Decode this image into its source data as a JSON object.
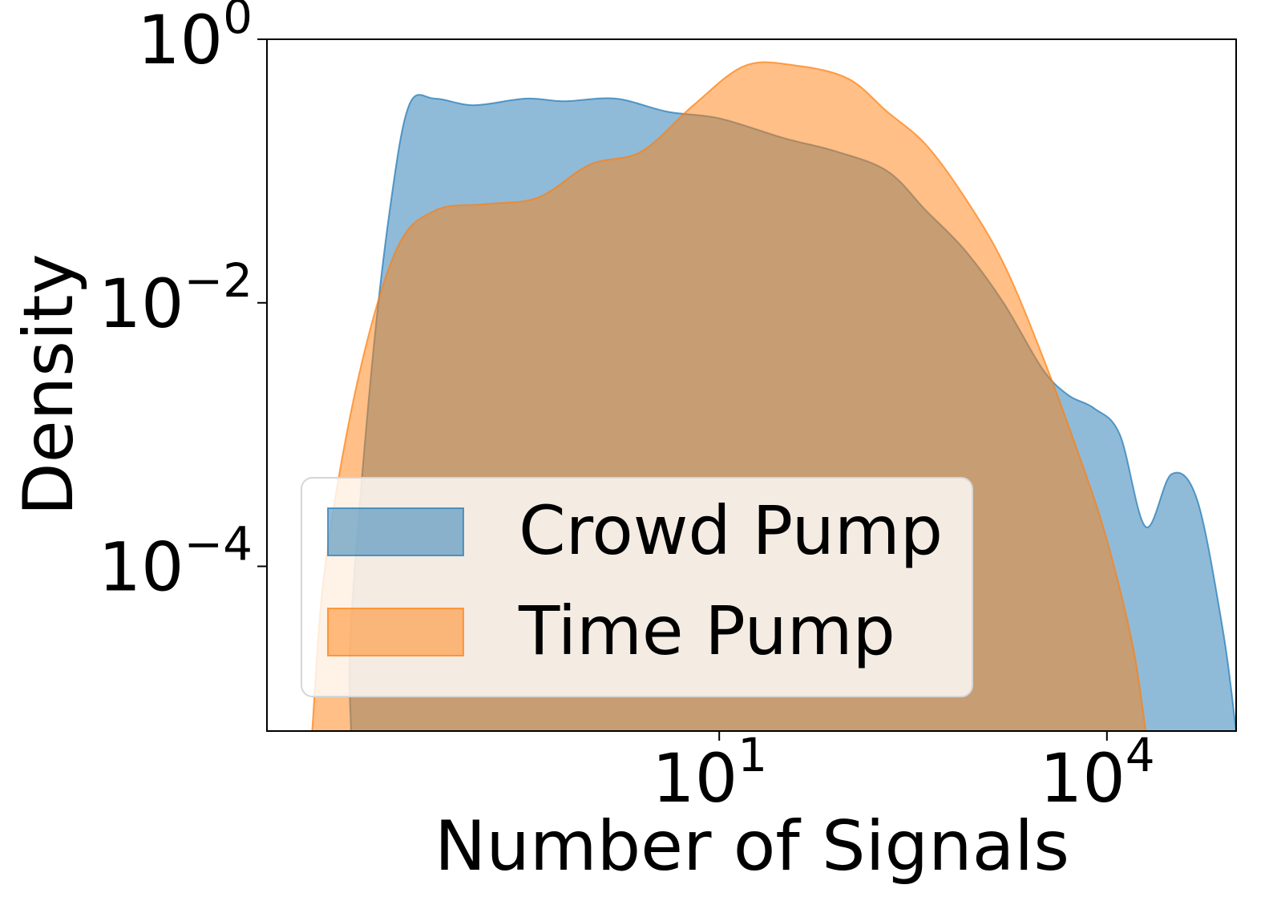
{
  "chart_data": {
    "type": "area",
    "title": "",
    "xlabel": "Number of Signals",
    "ylabel": "Density",
    "xscale": "log",
    "yscale": "log",
    "xlim_log10": [
      -2.5,
      5.0
    ],
    "ylim_log10": [
      -5.25,
      0.0
    ],
    "x_ticks": [
      {
        "log10": 1,
        "base": "10",
        "exp": "1"
      },
      {
        "log10": 4,
        "base": "10",
        "exp": "4"
      }
    ],
    "y_ticks": [
      {
        "log10": 0,
        "base": "10",
        "exp": "0"
      },
      {
        "log10": -2,
        "base": "10",
        "exp": "−2"
      },
      {
        "log10": -4,
        "base": "10",
        "exp": "−4"
      }
    ],
    "legend_position": "lower-left",
    "series": [
      {
        "name": "Crowd Pump",
        "color": "#1f77b4",
        "x_log10": [
          -1.85,
          -1.85,
          -1.7,
          -1.55,
          -1.4,
          -1.2,
          -0.9,
          -0.5,
          -0.2,
          0.2,
          0.6,
          1.0,
          1.5,
          1.9,
          2.3,
          2.6,
          2.9,
          3.2,
          3.5,
          3.7,
          3.9,
          4.1,
          4.3,
          4.5,
          4.7,
          4.9,
          5.0
        ],
        "y_log10": [
          -5.25,
          -4.45,
          -2.6,
          -1.3,
          -0.5,
          -0.45,
          -0.5,
          -0.45,
          -0.47,
          -0.45,
          -0.55,
          -0.6,
          -0.75,
          -0.85,
          -1.0,
          -1.3,
          -1.6,
          -2.0,
          -2.5,
          -2.7,
          -2.8,
          -3.0,
          -3.7,
          -3.3,
          -3.5,
          -4.5,
          -5.25
        ]
      },
      {
        "name": "Time Pump",
        "color": "#ff7f0e",
        "x_log10": [
          -2.15,
          -2.05,
          -1.8,
          -1.5,
          -1.2,
          -0.8,
          -0.4,
          0.0,
          0.4,
          0.8,
          1.2,
          1.6,
          2.0,
          2.3,
          2.6,
          2.9,
          3.2,
          3.5,
          3.8,
          4.0,
          4.2,
          4.3
        ],
        "y_log10": [
          -5.25,
          -4.0,
          -2.6,
          -1.6,
          -1.3,
          -1.25,
          -1.2,
          -0.95,
          -0.85,
          -0.5,
          -0.2,
          -0.2,
          -0.3,
          -0.55,
          -0.8,
          -1.2,
          -1.7,
          -2.4,
          -3.2,
          -3.8,
          -4.6,
          -5.25
        ]
      }
    ]
  }
}
